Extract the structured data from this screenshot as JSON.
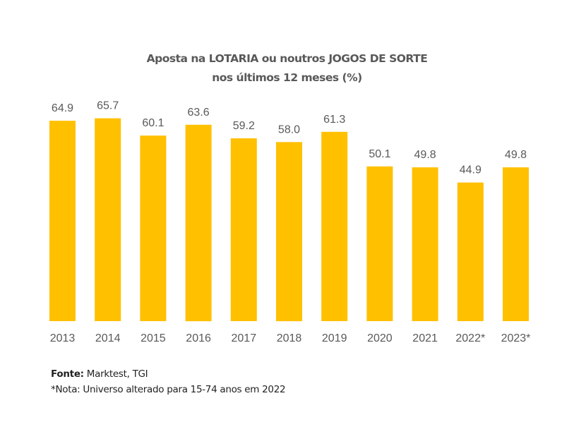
{
  "chart_data": {
    "type": "bar",
    "title": "Aposta na LOTARIA ou noutros JOGOS DE SORTE",
    "subtitle": "nos últimos 12 meses (%)",
    "categories": [
      "2013",
      "2014",
      "2015",
      "2016",
      "2017",
      "2018",
      "2019",
      "2020",
      "2021",
      "2022*",
      "2023*"
    ],
    "values": [
      64.9,
      65.7,
      60.1,
      63.6,
      59.2,
      58.0,
      61.3,
      50.1,
      49.8,
      44.9,
      49.8
    ],
    "value_labels": [
      "64.9",
      "65.7",
      "60.1",
      "63.6",
      "59.2",
      "58.0",
      "61.3",
      "50.1",
      "49.8",
      "44.9",
      "49.8"
    ],
    "xlabel": "",
    "ylabel": "",
    "ylim": [
      0,
      70
    ],
    "grid": false,
    "legend": "none",
    "bar_color": "#FFC000"
  },
  "footer": {
    "source_label": "Fonte:",
    "source_text": " Marktest, TGI",
    "note": "*Nota: Universo alterado para 15-74 anos em 2022"
  }
}
